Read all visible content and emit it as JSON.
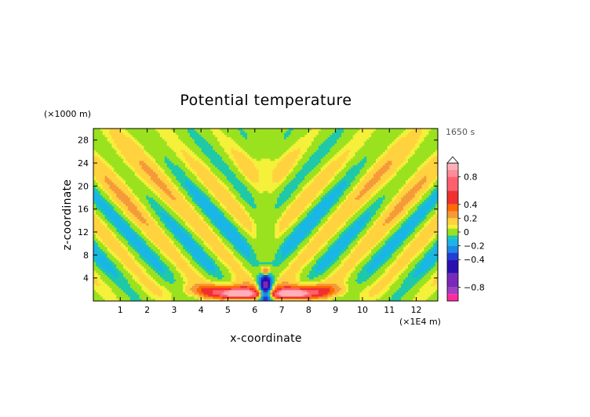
{
  "chart_data": {
    "type": "heatmap",
    "title": "Potential temperature",
    "xlabel": "x-coordinate",
    "ylabel": "z-coordinate",
    "x_unit": "(×1E4 m)",
    "y_unit": "(×1000 m)",
    "time_label": "1650 s",
    "xlim": [
      0,
      12.8
    ],
    "ylim": [
      0,
      30
    ],
    "x_ticks": [
      1,
      2,
      3,
      4,
      5,
      6,
      7,
      8,
      9,
      10,
      11,
      12
    ],
    "y_ticks": [
      4,
      8,
      12,
      16,
      20,
      24,
      28
    ],
    "colorbar": {
      "range": [
        -1.0,
        1.0
      ],
      "labels": [
        "0.8",
        "0.4",
        "0.2",
        "0",
        "−0.2",
        "−0.4",
        "−0.8"
      ],
      "label_values": [
        0.8,
        0.4,
        0.2,
        0,
        -0.2,
        -0.4,
        -0.8
      ],
      "levels": [
        {
          "min": 0.9,
          "max": 1.0,
          "color": "#ffb0b8"
        },
        {
          "min": 0.8,
          "max": 0.9,
          "color": "#ff8c98"
        },
        {
          "min": 0.6,
          "max": 0.8,
          "color": "#ff6070"
        },
        {
          "min": 0.4,
          "max": 0.6,
          "color": "#f03030"
        },
        {
          "min": 0.3,
          "max": 0.4,
          "color": "#ff6a00"
        },
        {
          "min": 0.2,
          "max": 0.3,
          "color": "#f59a3a"
        },
        {
          "min": 0.1,
          "max": 0.2,
          "color": "#ffd23f"
        },
        {
          "min": 0.05,
          "max": 0.1,
          "color": "#f5f03a"
        },
        {
          "min": -0.05,
          "max": 0.05,
          "color": "#9ae21f"
        },
        {
          "min": -0.1,
          "max": -0.05,
          "color": "#1ec8a8"
        },
        {
          "min": -0.2,
          "max": -0.1,
          "color": "#19b6e6"
        },
        {
          "min": -0.3,
          "max": -0.2,
          "color": "#1e88e5"
        },
        {
          "min": -0.4,
          "max": -0.3,
          "color": "#1f3fd8"
        },
        {
          "min": -0.6,
          "max": -0.4,
          "color": "#2a10b0"
        },
        {
          "min": -0.8,
          "max": -0.6,
          "color": "#7a2ab8"
        },
        {
          "min": -0.9,
          "max": -0.8,
          "color": "#a040c0"
        },
        {
          "min": -1.0,
          "max": -0.9,
          "color": "#ff2aa0"
        }
      ]
    },
    "field_features": [
      {
        "kind": "base",
        "value": 0,
        "region": "whole domain"
      },
      {
        "kind": "lobe",
        "value": 0.15,
        "x": [
          0.5,
          6.3
        ],
        "z": [
          1.5,
          28
        ]
      },
      {
        "kind": "lobe",
        "value": 0.15,
        "x": [
          6.5,
          12.3
        ],
        "z": [
          1.5,
          28
        ]
      },
      {
        "kind": "lobe",
        "value": -0.2,
        "x": [
          1.5,
          6.2
        ],
        "z": [
          5,
          23
        ]
      },
      {
        "kind": "lobe",
        "value": -0.2,
        "x": [
          6.6,
          11.3
        ],
        "z": [
          5,
          23
        ]
      },
      {
        "kind": "lobe",
        "value": 0.25,
        "x": [
          1.6,
          2.8
        ],
        "z": [
          25,
          29
        ]
      },
      {
        "kind": "lobe",
        "value": 0.25,
        "x": [
          10.2,
          11.7
        ],
        "z": [
          25,
          29
        ]
      },
      {
        "kind": "surface",
        "value": 0.9,
        "x": [
          4.6,
          8.2
        ],
        "z": [
          0.5,
          2.5
        ]
      },
      {
        "kind": "core",
        "value": -0.9,
        "x": [
          6.1,
          6.6
        ],
        "z": [
          0.3,
          5.5
        ]
      }
    ]
  }
}
